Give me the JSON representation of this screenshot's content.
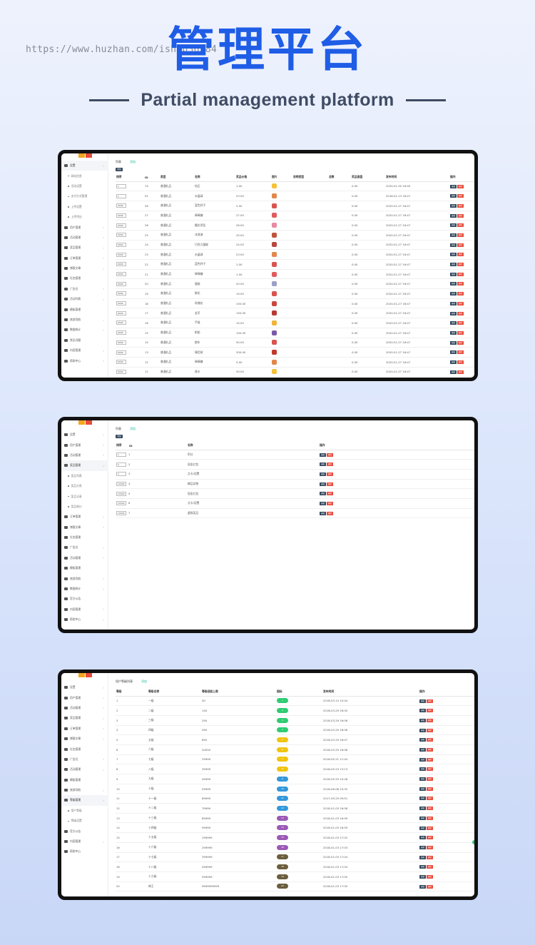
{
  "watermark": "https://www.huzhan.com/ishop36584",
  "hero": {
    "title": "管理平台",
    "subtitle": "Partial management platform"
  },
  "colors": {
    "brand_blue": "#1f5de6",
    "edit_button": "#34495e",
    "delete_button": "#e74c3c",
    "active_tab": "#1abc9c"
  },
  "s1": {
    "tabs": [
      "列表",
      "添加"
    ],
    "add_label": "添加",
    "sidebar": [
      {
        "label": "设置",
        "kind": "top",
        "active": true,
        "chevron": true,
        "icon": "gears-icon"
      },
      {
        "label": "网站信息",
        "kind": "sub"
      },
      {
        "label": "活动设置",
        "kind": "sub"
      },
      {
        "label": "支付方式管理",
        "kind": "sub"
      },
      {
        "label": "上传设置",
        "kind": "sub"
      },
      {
        "label": "上传列出",
        "kind": "sub"
      },
      {
        "label": "用户管理",
        "kind": "top",
        "chevron": true,
        "icon": "users-icon"
      },
      {
        "label": "活动管理",
        "kind": "top",
        "chevron": true,
        "icon": "flag-icon"
      },
      {
        "label": "奖品管理",
        "kind": "top",
        "chevron": true,
        "icon": "gift-icon"
      },
      {
        "label": "订单管理",
        "kind": "top",
        "chevron": true,
        "icon": "list-icon"
      },
      {
        "label": "博客文章",
        "kind": "top",
        "chevron": true,
        "icon": "monitor-icon"
      },
      {
        "label": "礼包管理",
        "kind": "top",
        "chevron": false,
        "icon": "lock-icon"
      },
      {
        "label": "广告位",
        "kind": "top",
        "chevron": true,
        "icon": "monitor-icon"
      },
      {
        "label": "活动列表",
        "kind": "top",
        "chevron": true,
        "icon": "monitor-icon"
      },
      {
        "label": "模板管理",
        "kind": "top",
        "chevron": false,
        "icon": "image-icon"
      },
      {
        "label": "底部导航",
        "kind": "top",
        "chevron": true,
        "icon": "sitemap-icon"
      },
      {
        "label": "数据统计",
        "kind": "top",
        "chevron": true,
        "icon": "user-icon"
      },
      {
        "label": "常见问题",
        "kind": "top",
        "chevron": false,
        "icon": "monitor-icon"
      },
      {
        "label": "内容管理",
        "kind": "top",
        "chevron": true,
        "icon": "grid-icon"
      },
      {
        "label": "帮助中心",
        "kind": "top",
        "chevron": true,
        "icon": "cloud-icon"
      }
    ],
    "headers": [
      "排序",
      "ID",
      "类型",
      "名称",
      "奖品价格",
      "图片",
      "说明类型",
      "总数",
      "奖品面值",
      "发布时间",
      "操作"
    ],
    "edit_label": "编辑",
    "delete_label": "删除",
    "rows": [
      [
        "1",
        "74",
        "普通礼品",
        "钻石",
        "1.00",
        "",
        "",
        "",
        "0.00",
        "2020-01-30 16:40",
        "#f5c23a"
      ],
      [
        "1",
        "52",
        "普通礼品",
        "水晶球",
        "23.00",
        "",
        "",
        "",
        "0.00",
        "2018-01-13 16:47",
        "#e2874b"
      ],
      [
        "9999",
        "28",
        "普通礼品",
        "蓝色杯子",
        "2.00",
        "",
        "",
        "",
        "0.00",
        "2020-01-27 16:47",
        "#d9534f"
      ],
      [
        "9999",
        "27",
        "普通礼品",
        "棒棒糖",
        "27.00",
        "",
        "",
        "",
        "0.00",
        "2020-01-27 16:47",
        "#e05c5c"
      ],
      [
        "9999",
        "26",
        "普通礼品",
        "樱花吊坠",
        "26.00",
        "",
        "",
        "",
        "0.00",
        "2020-01-27 16:47",
        "#e88aa0"
      ],
      [
        "9999",
        "25",
        "普通礼品",
        "冰淇淋",
        "25.00",
        "",
        "",
        "",
        "0.00",
        "2020-01-27 16:47",
        "#c0533d"
      ],
      [
        "9999",
        "24",
        "普通礼品",
        "巧克力蛋糕",
        "24.00",
        "",
        "",
        "",
        "0.00",
        "2020-01-27 16:47",
        "#b8473f"
      ],
      [
        "9999",
        "23",
        "普通礼品",
        "水晶球",
        "23.00",
        "",
        "",
        "",
        "0.00",
        "2020-01-27 16:47",
        "#e2874b"
      ],
      [
        "9999",
        "22",
        "普通礼品",
        "蓝色杯子",
        "2.00",
        "",
        "",
        "",
        "0.00",
        "2020-01-27 16:47",
        "#d9534f"
      ],
      [
        "9999",
        "21",
        "普通礼品",
        "棒棒糖",
        "1.00",
        "",
        "",
        "",
        "0.00",
        "2020-01-27 16:47",
        "#e05c5c"
      ],
      [
        "9999",
        "20",
        "普通礼品",
        "蛋糕",
        "20.00",
        "",
        "",
        "",
        "0.00",
        "2020-01-27 16:47",
        "#9aa0c8"
      ],
      [
        "9999",
        "19",
        "普通礼品",
        "鲜花",
        "19.00",
        "",
        "",
        "",
        "0.00",
        "2020-01-27 16:47",
        "#d9534f"
      ],
      [
        "9999",
        "18",
        "普通礼品",
        "玫瑰花",
        "100.00",
        "",
        "",
        "",
        "0.00",
        "2020-01-27 16:47",
        "#c9483b"
      ],
      [
        "9999",
        "17",
        "普通礼品",
        "金币",
        "150.00",
        "",
        "",
        "",
        "0.00",
        "2020-01-27 16:47",
        "#b83a30"
      ],
      [
        "9999",
        "16",
        "普通礼品",
        "手链",
        "10.00",
        "",
        "",
        "",
        "0.00",
        "2020-01-27 16:47",
        "#f0b43a"
      ],
      [
        "9999",
        "15",
        "普通礼品",
        "帆船",
        "100.00",
        "",
        "",
        "",
        "0.00",
        "2020-01-27 16:47",
        "#7a5aa8"
      ],
      [
        "9999",
        "14",
        "普通礼品",
        "跑车",
        "50.00",
        "",
        "",
        "",
        "0.00",
        "2020-01-27 16:47",
        "#d9534f"
      ],
      [
        "9999",
        "13",
        "普通礼品",
        "情侣装",
        "300.00",
        "",
        "",
        "",
        "0.00",
        "2020-01-27 16:47",
        "#c0392b"
      ],
      [
        "9999",
        "12",
        "普通礼品",
        "棒棒糖",
        "5.00",
        "",
        "",
        "",
        "0.00",
        "2020-01-27 16:47",
        "#e2874b"
      ],
      [
        "9999",
        "11",
        "普通礼品",
        "香水",
        "30.00",
        "",
        "",
        "",
        "0.00",
        "2020-01-27 16:47",
        "#f5c23a"
      ]
    ]
  },
  "s2": {
    "tabs": [
      "列表",
      "添加"
    ],
    "add_label": "添加",
    "sidebar": [
      {
        "label": "设置",
        "kind": "top",
        "chevron": true,
        "icon": "gears-icon"
      },
      {
        "label": "用户管理",
        "kind": "top",
        "chevron": true,
        "icon": "users-icon"
      },
      {
        "label": "活动管理",
        "kind": "top",
        "chevron": true,
        "icon": "flag-icon"
      },
      {
        "label": "奖品管理",
        "kind": "top",
        "active": true,
        "chevron": true,
        "icon": "gift-icon"
      },
      {
        "label": "奖品列表",
        "kind": "sub"
      },
      {
        "label": "奖品分类",
        "kind": "sub"
      },
      {
        "label": "奖品记录",
        "kind": "sub"
      },
      {
        "label": "奖品统计",
        "kind": "sub"
      },
      {
        "label": "订单管理",
        "kind": "top",
        "chevron": true,
        "icon": "list-icon"
      },
      {
        "label": "博客文章",
        "kind": "top",
        "chevron": true,
        "icon": "monitor-icon"
      },
      {
        "label": "礼包管理",
        "kind": "top",
        "chevron": false,
        "icon": "lock-icon"
      },
      {
        "label": "广告位",
        "kind": "top",
        "chevron": true,
        "icon": "monitor-icon"
      },
      {
        "label": "活动管理",
        "kind": "top",
        "chevron": true,
        "icon": "monitor-icon"
      },
      {
        "label": "模板管理",
        "kind": "top",
        "chevron": false,
        "icon": "image-icon"
      },
      {
        "label": "底部导航",
        "kind": "top",
        "chevron": true,
        "icon": "sitemap-icon"
      },
      {
        "label": "数据统计",
        "kind": "top",
        "chevron": true,
        "icon": "user-icon"
      },
      {
        "label": "官方公告",
        "kind": "top",
        "chevron": false,
        "icon": "monitor-icon"
      },
      {
        "label": "内容管理",
        "kind": "top",
        "chevron": true,
        "icon": "grid-icon"
      },
      {
        "label": "帮助中心",
        "kind": "top",
        "chevron": true,
        "icon": "cloud-icon"
      }
    ],
    "headers": [
      "排序",
      "ID",
      "名称",
      "操作"
    ],
    "edit_label": "编辑",
    "delete_label": "删除",
    "rows": [
      [
        "1",
        "1",
        "积分"
      ],
      [
        "2",
        "2",
        "现金红包"
      ],
      [
        "3",
        "3",
        "点卡/话费"
      ],
      [
        "10000",
        "4",
        "精品实物"
      ],
      [
        "10000",
        "5",
        "现金红包"
      ],
      [
        "10000",
        "6",
        "点卡/话费"
      ],
      [
        "10000",
        "7",
        "虚拟奖品"
      ]
    ]
  },
  "s3": {
    "tabs": [
      "用户等级列表",
      "添加"
    ],
    "sidebar": [
      {
        "label": "设置",
        "kind": "top",
        "chevron": true,
        "icon": "gears-icon"
      },
      {
        "label": "用户管理",
        "kind": "top",
        "chevron": true,
        "icon": "users-icon"
      },
      {
        "label": "活动管理",
        "kind": "top",
        "chevron": true,
        "icon": "flag-icon"
      },
      {
        "label": "奖品管理",
        "kind": "top",
        "chevron": true,
        "icon": "gift-icon"
      },
      {
        "label": "订单管理",
        "kind": "top",
        "chevron": true,
        "icon": "list-icon"
      },
      {
        "label": "博客文章",
        "kind": "top",
        "chevron": true,
        "icon": "monitor-icon"
      },
      {
        "label": "礼包管理",
        "kind": "top",
        "chevron": false,
        "icon": "lock-icon"
      },
      {
        "label": "广告位",
        "kind": "top",
        "chevron": true,
        "icon": "monitor-icon"
      },
      {
        "label": "活动管理",
        "kind": "top",
        "chevron": true,
        "icon": "monitor-icon"
      },
      {
        "label": "模板管理",
        "kind": "top",
        "chevron": false,
        "icon": "image-icon"
      },
      {
        "label": "底部导航",
        "kind": "top",
        "chevron": true,
        "icon": "sitemap-icon"
      },
      {
        "label": "等级管理",
        "kind": "top",
        "active": true,
        "chevron": true,
        "icon": "user-icon"
      },
      {
        "label": "用户等级",
        "kind": "sub"
      },
      {
        "label": "等级设置",
        "kind": "sub"
      },
      {
        "label": "官方公告",
        "kind": "top",
        "chevron": false,
        "icon": "monitor-icon"
      },
      {
        "label": "内容管理",
        "kind": "top",
        "chevron": true,
        "icon": "grid-icon"
      },
      {
        "label": "帮助中心",
        "kind": "top",
        "chevron": false,
        "icon": "cloud-icon"
      }
    ],
    "headers": [
      "等级",
      "等级名称",
      "等级经验上限",
      "图标",
      "发布时间",
      "操作"
    ],
    "edit_label": "编辑",
    "delete_label": "删除",
    "rows": [
      [
        "1",
        "一级",
        "40",
        "g",
        "2018-03-14 10:44"
      ],
      [
        "2",
        "二级",
        "140",
        "g",
        "2018-03-29 16:05"
      ],
      [
        "3",
        "三级",
        "290",
        "g",
        "2018-03-29 16:06"
      ],
      [
        "4",
        "四级",
        "490",
        "g",
        "2018-03-29 16:06"
      ],
      [
        "5",
        "五级",
        "890",
        "y",
        "2018-03-29 16:07"
      ],
      [
        "6",
        "六级",
        "20000",
        "y",
        "2018-03-29 16:08"
      ],
      [
        "7",
        "七级",
        "29999",
        "y",
        "2018-05-21 11:44"
      ],
      [
        "8",
        "八级",
        "39999",
        "y",
        "2018-05-23 13:13"
      ],
      [
        "9",
        "九级",
        "49999",
        "b",
        "2018-05-25 10:28"
      ],
      [
        "10",
        "十级",
        "59999",
        "b",
        "2018-06-08 10:32"
      ],
      [
        "11",
        "十一级",
        "69999",
        "b",
        "2017-09-25 09:51"
      ],
      [
        "12",
        "十二级",
        "79999",
        "b",
        "2018-01-03 16:58"
      ],
      [
        "13",
        "十三级",
        "89999",
        "p",
        "2018-01-03 16:59"
      ],
      [
        "14",
        "十四级",
        "99999",
        "p",
        "2018-01-03 16:59"
      ],
      [
        "15",
        "十五级",
        "199999",
        "p",
        "2018-01-03 17:02"
      ],
      [
        "16",
        "十六级",
        "299999",
        "p",
        "2018-01-03 17:03"
      ],
      [
        "17",
        "十七级",
        "399999",
        "d",
        "2018-01-03 17:04"
      ],
      [
        "18",
        "十八级",
        "499999",
        "d",
        "2018-01-03 17:04"
      ],
      [
        "19",
        "十九级",
        "599999",
        "d",
        "2018-01-03 17:05"
      ],
      [
        "20",
        "神王",
        "9999999999",
        "d",
        "2018-01-03 17:05"
      ]
    ]
  }
}
